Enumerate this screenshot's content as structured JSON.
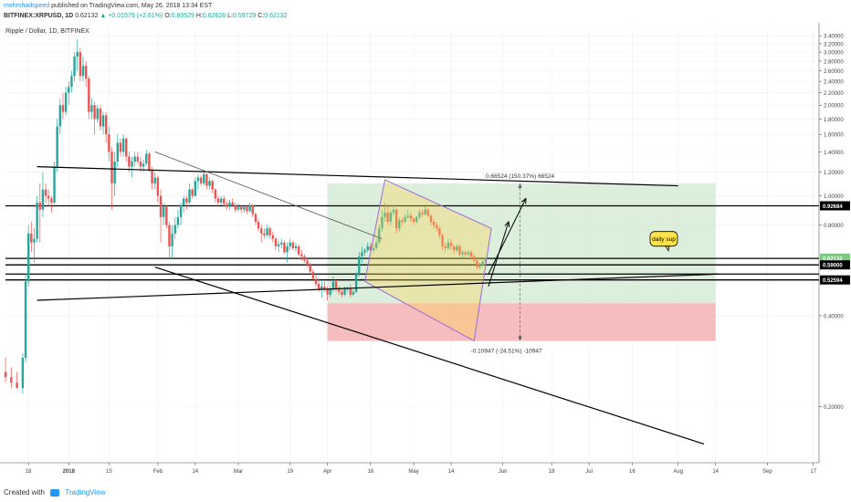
{
  "header": {
    "username": "mehrshadspeed",
    "published": "published on TradingView.com, May 26, 2018 13:34 EST",
    "symbol": "BITFINEX:XRPUSD, 1D",
    "last": "0.62132",
    "change": "▲ +0.01579 (+2.61%)",
    "o_label": "O:",
    "o_value": "0.60529",
    "h_label": "H:",
    "h_value": "0.62626",
    "l_label": "L:",
    "l_value": "0.59729",
    "c_label": "C:",
    "c_value": "0.62132"
  },
  "footer": {
    "created_with": "Created with",
    "brand": "TradingView"
  },
  "chart_data": {
    "type": "candlestick",
    "title": "Ripple / Dollar, 1D, BITFINEX",
    "y_scale": "log",
    "ylim": [
      0.13,
      3.6
    ],
    "y_ticks": [
      3.4,
      3.2,
      3.0,
      2.8,
      2.6,
      2.4,
      2.2,
      2.0,
      1.8,
      1.6,
      1.4,
      1.2,
      1.0,
      0.8,
      0.6,
      0.4,
      0.2
    ],
    "y_tick_labels": [
      "3.40000",
      "3.20000",
      "3.00000",
      "2.80000",
      "2.60000",
      "2.40000",
      "2.20000",
      "2.00000",
      "1.80000",
      "1.60000",
      "1.40000",
      "1.20000",
      "1.00000",
      "0.80000",
      "0.60000",
      "0.40000",
      "0.20000"
    ],
    "x_start": "2017-12-10",
    "x_end": "2018-09-19",
    "x_ticks": [
      {
        "date": "2017-12-18",
        "label": "18"
      },
      {
        "date": "2018-01-01",
        "label": "2018"
      },
      {
        "date": "2018-01-15",
        "label": "15"
      },
      {
        "date": "2018-02-01",
        "label": "Feb"
      },
      {
        "date": "2018-02-14",
        "label": "14"
      },
      {
        "date": "2018-03-01",
        "label": "Mar"
      },
      {
        "date": "2018-03-19",
        "label": "19"
      },
      {
        "date": "2018-04-01",
        "label": "Apr"
      },
      {
        "date": "2018-04-16",
        "label": "16"
      },
      {
        "date": "2018-05-01",
        "label": "May"
      },
      {
        "date": "2018-05-14",
        "label": "14"
      },
      {
        "date": "2018-06-01",
        "label": "Jun"
      },
      {
        "date": "2018-06-18",
        "label": "18"
      },
      {
        "date": "2018-07-01",
        "label": "Jul"
      },
      {
        "date": "2018-07-16",
        "label": "16"
      },
      {
        "date": "2018-08-01",
        "label": "Aug"
      },
      {
        "date": "2018-08-14",
        "label": "14"
      },
      {
        "date": "2018-09-01",
        "label": "Sep"
      },
      {
        "date": "2018-09-17",
        "label": "17"
      }
    ],
    "price_markers": [
      {
        "value": 0.92684,
        "label": "0.92684",
        "bg": "#000000"
      },
      {
        "value": 0.62132,
        "label": "0.62132",
        "bg": "#81c784"
      },
      {
        "value": 0.59,
        "label": "0.59000",
        "bg": "#000000"
      },
      {
        "value": 0.52594,
        "label": "0.52594",
        "bg": "#000000"
      }
    ],
    "h_lines": [
      0.92684,
      0.62,
      0.59,
      0.55,
      0.52594
    ],
    "trend_lines": [
      {
        "x1": "2017-12-21",
        "y1": 1.25,
        "x2": "2018-08-01",
        "y2": 1.08
      },
      {
        "x1": "2018-01-31",
        "y1": 1.4,
        "x2": "2018-04-20",
        "y2": 0.72
      },
      {
        "x1": "2018-01-31",
        "y1": 0.58,
        "x2": "2018-08-10",
        "y2": 0.15
      },
      {
        "x1": "2017-12-21",
        "y1": 0.45,
        "x2": "2018-08-15",
        "y2": 0.55
      }
    ],
    "projection": {
      "start": "2018-04-01",
      "end": "2018-08-14",
      "entry": 0.44,
      "target": 1.1,
      "stop": 0.33,
      "target_label": "0.66524 (150.37%) 66524",
      "stop_label": "-0.10947 (-24.51%) -10947",
      "mid": "2018-06-07"
    },
    "channel": [
      {
        "date": "2018-04-21",
        "price": 1.13
      },
      {
        "date": "2018-05-28",
        "price": 0.78
      },
      {
        "date": "2018-05-22",
        "price": 0.33
      },
      {
        "date": "2018-04-14",
        "price": 0.52
      }
    ],
    "arrows": [
      {
        "x1": "2018-05-27",
        "y1": 0.5,
        "x2": "2018-06-03",
        "y2": 0.82
      },
      {
        "x1": "2018-05-27",
        "y1": 0.55,
        "x2": "2018-06-09",
        "y2": 0.98
      }
    ],
    "callout": {
      "text": "daily sup",
      "date": "2018-07-27",
      "price": 0.72
    },
    "candles": [
      [
        "2017-12-10",
        0.26,
        0.29,
        0.24,
        0.25
      ],
      [
        "2017-12-12",
        0.25,
        0.27,
        0.23,
        0.24
      ],
      [
        "2017-12-14",
        0.24,
        0.26,
        0.23,
        0.23
      ],
      [
        "2017-12-16",
        0.23,
        0.3,
        0.22,
        0.29
      ],
      [
        "2017-12-17",
        0.29,
        0.55,
        0.28,
        0.52
      ],
      [
        "2017-12-18",
        0.52,
        0.8,
        0.5,
        0.75
      ],
      [
        "2017-12-19",
        0.75,
        0.82,
        0.65,
        0.7
      ],
      [
        "2017-12-20",
        0.7,
        0.78,
        0.6,
        0.72
      ],
      [
        "2017-12-21",
        0.72,
        1.0,
        0.7,
        0.95
      ],
      [
        "2017-12-22",
        0.95,
        1.1,
        0.7,
        0.9
      ],
      [
        "2017-12-23",
        0.9,
        1.2,
        0.85,
        1.05
      ],
      [
        "2017-12-24",
        1.05,
        1.1,
        0.95,
        1.0
      ],
      [
        "2017-12-25",
        1.0,
        1.05,
        0.92,
        0.98
      ],
      [
        "2017-12-26",
        0.98,
        1.0,
        0.88,
        0.95
      ],
      [
        "2017-12-27",
        0.95,
        1.3,
        0.94,
        1.25
      ],
      [
        "2017-12-28",
        1.25,
        1.8,
        1.2,
        1.7
      ],
      [
        "2017-12-29",
        1.7,
        2.1,
        1.6,
        2.0
      ],
      [
        "2017-12-30",
        2.0,
        2.2,
        1.8,
        1.9
      ],
      [
        "2017-12-31",
        1.9,
        2.3,
        1.85,
        2.2
      ],
      [
        "2018-01-01",
        2.2,
        2.4,
        2.0,
        2.3
      ],
      [
        "2018-01-02",
        2.3,
        2.6,
        2.2,
        2.5
      ],
      [
        "2018-01-03",
        2.5,
        3.0,
        2.4,
        2.9
      ],
      [
        "2018-01-04",
        2.9,
        3.3,
        2.6,
        3.0
      ],
      [
        "2018-01-05",
        3.0,
        3.1,
        2.4,
        2.5
      ],
      [
        "2018-01-06",
        2.5,
        2.9,
        2.4,
        2.7
      ],
      [
        "2018-01-07",
        2.7,
        2.8,
        2.3,
        2.45
      ],
      [
        "2018-01-08",
        2.45,
        2.5,
        1.8,
        1.9
      ],
      [
        "2018-01-09",
        1.9,
        2.1,
        1.8,
        2.0
      ],
      [
        "2018-01-10",
        2.0,
        2.05,
        1.6,
        1.8
      ],
      [
        "2018-01-11",
        1.8,
        2.0,
        1.75,
        1.95
      ],
      [
        "2018-01-12",
        1.95,
        2.0,
        1.65,
        1.7
      ],
      [
        "2018-01-13",
        1.7,
        1.9,
        1.6,
        1.85
      ],
      [
        "2018-01-14",
        1.85,
        1.9,
        1.5,
        1.6
      ],
      [
        "2018-01-15",
        1.6,
        1.7,
        1.3,
        1.4
      ],
      [
        "2018-01-16",
        1.4,
        1.45,
        0.9,
        1.1
      ],
      [
        "2018-01-17",
        1.1,
        1.4,
        1.0,
        1.3
      ],
      [
        "2018-01-18",
        1.3,
        1.6,
        1.25,
        1.5
      ],
      [
        "2018-01-19",
        1.5,
        1.55,
        1.35,
        1.4
      ],
      [
        "2018-01-20",
        1.4,
        1.6,
        1.35,
        1.55
      ],
      [
        "2018-01-21",
        1.55,
        1.56,
        1.3,
        1.35
      ],
      [
        "2018-01-22",
        1.35,
        1.4,
        1.2,
        1.25
      ],
      [
        "2018-01-23",
        1.25,
        1.35,
        1.15,
        1.3
      ],
      [
        "2018-01-24",
        1.3,
        1.4,
        1.25,
        1.35
      ],
      [
        "2018-01-25",
        1.35,
        1.4,
        1.28,
        1.3
      ],
      [
        "2018-01-26",
        1.3,
        1.35,
        1.2,
        1.25
      ],
      [
        "2018-01-27",
        1.25,
        1.32,
        1.2,
        1.28
      ],
      [
        "2018-01-28",
        1.28,
        1.42,
        1.26,
        1.38
      ],
      [
        "2018-01-29",
        1.38,
        1.4,
        1.2,
        1.22
      ],
      [
        "2018-01-30",
        1.22,
        1.25,
        1.05,
        1.1
      ],
      [
        "2018-01-31",
        1.1,
        1.2,
        1.05,
        1.15
      ],
      [
        "2018-02-01",
        1.15,
        1.17,
        0.95,
        1.0
      ],
      [
        "2018-02-02",
        1.0,
        1.05,
        0.7,
        0.85
      ],
      [
        "2018-02-03",
        0.85,
        0.95,
        0.8,
        0.92
      ],
      [
        "2018-02-04",
        0.92,
        0.93,
        0.78,
        0.8
      ],
      [
        "2018-02-05",
        0.8,
        0.82,
        0.62,
        0.68
      ],
      [
        "2018-02-06",
        0.68,
        0.8,
        0.62,
        0.75
      ],
      [
        "2018-02-07",
        0.75,
        0.85,
        0.72,
        0.8
      ],
      [
        "2018-02-08",
        0.8,
        0.9,
        0.78,
        0.85
      ],
      [
        "2018-02-09",
        0.85,
        0.95,
        0.8,
        0.93
      ],
      [
        "2018-02-10",
        0.93,
        1.0,
        0.88,
        0.98
      ],
      [
        "2018-02-11",
        0.98,
        1.0,
        0.9,
        0.95
      ],
      [
        "2018-02-12",
        0.95,
        1.1,
        0.94,
        1.05
      ],
      [
        "2018-02-13",
        1.05,
        1.06,
        0.98,
        1.0
      ],
      [
        "2018-02-14",
        1.0,
        1.15,
        0.99,
        1.12
      ],
      [
        "2018-02-15",
        1.12,
        1.18,
        1.05,
        1.15
      ],
      [
        "2018-02-16",
        1.15,
        1.17,
        1.08,
        1.1
      ],
      [
        "2018-02-17",
        1.1,
        1.2,
        1.08,
        1.18
      ],
      [
        "2018-02-18",
        1.18,
        1.19,
        1.05,
        1.08
      ],
      [
        "2018-02-19",
        1.08,
        1.15,
        1.05,
        1.12
      ],
      [
        "2018-02-20",
        1.12,
        1.13,
        1.02,
        1.05
      ],
      [
        "2018-02-21",
        1.05,
        1.06,
        0.95,
        0.98
      ],
      [
        "2018-02-22",
        0.98,
        1.0,
        0.92,
        0.95
      ],
      [
        "2018-02-23",
        0.95,
        1.0,
        0.93,
        0.98
      ],
      [
        "2018-02-24",
        0.98,
        1.0,
        0.92,
        0.94
      ],
      [
        "2018-02-25",
        0.94,
        0.96,
        0.9,
        0.92
      ],
      [
        "2018-02-26",
        0.92,
        0.97,
        0.9,
        0.95
      ],
      [
        "2018-02-27",
        0.95,
        0.98,
        0.92,
        0.93
      ],
      [
        "2018-02-28",
        0.93,
        0.95,
        0.88,
        0.9
      ],
      [
        "2018-03-01",
        0.9,
        0.94,
        0.89,
        0.92
      ],
      [
        "2018-03-02",
        0.92,
        0.93,
        0.88,
        0.9
      ],
      [
        "2018-03-03",
        0.9,
        0.93,
        0.88,
        0.92
      ],
      [
        "2018-03-04",
        0.92,
        0.93,
        0.87,
        0.89
      ],
      [
        "2018-03-05",
        0.89,
        0.95,
        0.88,
        0.93
      ],
      [
        "2018-03-06",
        0.93,
        0.94,
        0.85,
        0.87
      ],
      [
        "2018-03-07",
        0.87,
        0.88,
        0.8,
        0.82
      ],
      [
        "2018-03-08",
        0.82,
        0.84,
        0.76,
        0.78
      ],
      [
        "2018-03-09",
        0.78,
        0.8,
        0.7,
        0.75
      ],
      [
        "2018-03-10",
        0.75,
        0.78,
        0.72,
        0.74
      ],
      [
        "2018-03-11",
        0.74,
        0.8,
        0.73,
        0.78
      ],
      [
        "2018-03-12",
        0.78,
        0.79,
        0.72,
        0.74
      ],
      [
        "2018-03-13",
        0.74,
        0.76,
        0.7,
        0.72
      ],
      [
        "2018-03-14",
        0.72,
        0.73,
        0.66,
        0.68
      ],
      [
        "2018-03-15",
        0.68,
        0.71,
        0.65,
        0.69
      ],
      [
        "2018-03-16",
        0.69,
        0.72,
        0.67,
        0.7
      ],
      [
        "2018-03-17",
        0.7,
        0.71,
        0.64,
        0.65
      ],
      [
        "2018-03-18",
        0.65,
        0.7,
        0.6,
        0.68
      ],
      [
        "2018-03-19",
        0.68,
        0.72,
        0.66,
        0.7
      ],
      [
        "2018-03-20",
        0.7,
        0.71,
        0.66,
        0.67
      ],
      [
        "2018-03-21",
        0.67,
        0.7,
        0.65,
        0.68
      ],
      [
        "2018-03-22",
        0.68,
        0.69,
        0.63,
        0.64
      ],
      [
        "2018-03-23",
        0.64,
        0.66,
        0.61,
        0.63
      ],
      [
        "2018-03-24",
        0.63,
        0.64,
        0.6,
        0.61
      ],
      [
        "2018-03-25",
        0.61,
        0.62,
        0.58,
        0.59
      ],
      [
        "2018-03-26",
        0.59,
        0.6,
        0.55,
        0.56
      ],
      [
        "2018-03-27",
        0.56,
        0.57,
        0.52,
        0.53
      ],
      [
        "2018-03-28",
        0.53,
        0.55,
        0.5,
        0.51
      ],
      [
        "2018-03-29",
        0.51,
        0.53,
        0.48,
        0.49
      ],
      [
        "2018-03-30",
        0.49,
        0.52,
        0.46,
        0.5
      ],
      [
        "2018-03-31",
        0.5,
        0.52,
        0.48,
        0.49
      ],
      [
        "2018-04-01",
        0.49,
        0.5,
        0.45,
        0.47
      ],
      [
        "2018-04-02",
        0.47,
        0.5,
        0.46,
        0.49
      ],
      [
        "2018-04-03",
        0.49,
        0.54,
        0.48,
        0.52
      ],
      [
        "2018-04-04",
        0.52,
        0.53,
        0.48,
        0.49
      ],
      [
        "2018-04-05",
        0.49,
        0.5,
        0.47,
        0.48
      ],
      [
        "2018-04-06",
        0.48,
        0.49,
        0.46,
        0.47
      ],
      [
        "2018-04-07",
        0.47,
        0.5,
        0.465,
        0.49
      ],
      [
        "2018-04-08",
        0.49,
        0.5,
        0.48,
        0.495
      ],
      [
        "2018-04-09",
        0.495,
        0.51,
        0.46,
        0.47
      ],
      [
        "2018-04-10",
        0.47,
        0.49,
        0.465,
        0.48
      ],
      [
        "2018-04-11",
        0.48,
        0.56,
        0.475,
        0.55
      ],
      [
        "2018-04-12",
        0.55,
        0.65,
        0.54,
        0.63
      ],
      [
        "2018-04-13",
        0.63,
        0.68,
        0.6,
        0.65
      ],
      [
        "2018-04-14",
        0.65,
        0.67,
        0.63,
        0.66
      ],
      [
        "2018-04-15",
        0.66,
        0.7,
        0.65,
        0.68
      ],
      [
        "2018-04-16",
        0.68,
        0.7,
        0.65,
        0.66
      ],
      [
        "2018-04-17",
        0.66,
        0.69,
        0.65,
        0.67
      ],
      [
        "2018-04-18",
        0.67,
        0.72,
        0.66,
        0.7
      ],
      [
        "2018-04-19",
        0.7,
        0.8,
        0.69,
        0.78
      ],
      [
        "2018-04-20",
        0.78,
        0.9,
        0.76,
        0.85
      ],
      [
        "2018-04-21",
        0.85,
        0.95,
        0.82,
        0.88
      ],
      [
        "2018-04-22",
        0.88,
        0.92,
        0.8,
        0.82
      ],
      [
        "2018-04-23",
        0.82,
        0.9,
        0.8,
        0.88
      ],
      [
        "2018-04-24",
        0.88,
        0.93,
        0.86,
        0.9
      ],
      [
        "2018-04-25",
        0.9,
        0.91,
        0.75,
        0.78
      ],
      [
        "2018-04-26",
        0.78,
        0.85,
        0.76,
        0.83
      ],
      [
        "2018-04-27",
        0.83,
        0.85,
        0.8,
        0.82
      ],
      [
        "2018-04-28",
        0.82,
        0.87,
        0.81,
        0.85
      ],
      [
        "2018-04-29",
        0.85,
        0.9,
        0.84,
        0.86
      ],
      [
        "2018-04-30",
        0.86,
        0.88,
        0.82,
        0.84
      ],
      [
        "2018-05-01",
        0.84,
        0.85,
        0.8,
        0.82
      ],
      [
        "2018-05-02",
        0.82,
        0.86,
        0.81,
        0.85
      ],
      [
        "2018-05-03",
        0.85,
        0.9,
        0.84,
        0.88
      ],
      [
        "2018-05-04",
        0.88,
        0.9,
        0.85,
        0.87
      ],
      [
        "2018-05-05",
        0.87,
        0.92,
        0.86,
        0.9
      ],
      [
        "2018-05-06",
        0.9,
        0.91,
        0.85,
        0.86
      ],
      [
        "2018-05-07",
        0.86,
        0.87,
        0.8,
        0.82
      ],
      [
        "2018-05-08",
        0.82,
        0.84,
        0.78,
        0.8
      ],
      [
        "2018-05-09",
        0.8,
        0.82,
        0.76,
        0.78
      ],
      [
        "2018-05-10",
        0.78,
        0.79,
        0.72,
        0.74
      ],
      [
        "2018-05-11",
        0.74,
        0.75,
        0.66,
        0.68
      ],
      [
        "2018-05-12",
        0.68,
        0.7,
        0.65,
        0.67
      ],
      [
        "2018-05-13",
        0.67,
        0.72,
        0.66,
        0.7
      ],
      [
        "2018-05-14",
        0.7,
        0.72,
        0.66,
        0.68
      ],
      [
        "2018-05-15",
        0.68,
        0.69,
        0.64,
        0.66
      ],
      [
        "2018-05-16",
        0.66,
        0.69,
        0.65,
        0.68
      ],
      [
        "2018-05-17",
        0.68,
        0.69,
        0.63,
        0.64
      ],
      [
        "2018-05-18",
        0.64,
        0.66,
        0.62,
        0.65
      ],
      [
        "2018-05-19",
        0.65,
        0.66,
        0.63,
        0.64
      ],
      [
        "2018-05-20",
        0.64,
        0.66,
        0.63,
        0.65
      ],
      [
        "2018-05-21",
        0.65,
        0.66,
        0.62,
        0.63
      ],
      [
        "2018-05-22",
        0.63,
        0.64,
        0.6,
        0.61
      ],
      [
        "2018-05-23",
        0.61,
        0.62,
        0.57,
        0.58
      ],
      [
        "2018-05-24",
        0.58,
        0.6,
        0.57,
        0.59
      ],
      [
        "2018-05-25",
        0.59,
        0.61,
        0.58,
        0.605
      ],
      [
        "2018-05-26",
        0.60529,
        0.62626,
        0.59729,
        0.62132
      ]
    ]
  }
}
